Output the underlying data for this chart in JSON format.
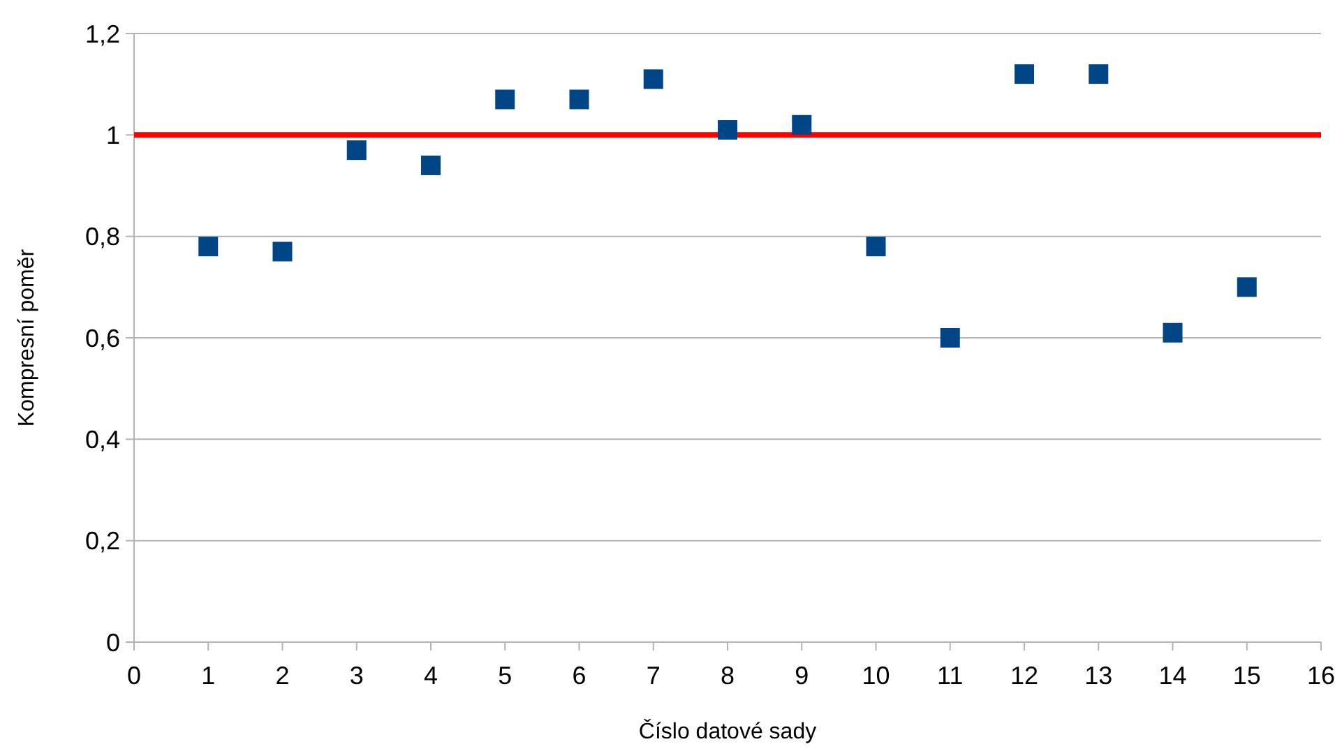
{
  "chart_data": {
    "type": "scatter",
    "xlabel": "Číslo datové sady",
    "ylabel": "Kompresní poměr",
    "x": [
      1,
      2,
      3,
      4,
      5,
      6,
      7,
      8,
      9,
      10,
      11,
      12,
      13,
      14,
      15
    ],
    "series": [
      {
        "color": "#004586",
        "values": [
          0.78,
          0.77,
          0.97,
          0.94,
          1.07,
          1.07,
          1.11,
          1.01,
          1.02,
          0.78,
          0.6,
          1.12,
          1.12,
          0.61,
          0.7
        ]
      }
    ],
    "xlim": [
      0,
      16
    ],
    "xticks": [
      0,
      1,
      2,
      3,
      4,
      5,
      6,
      7,
      8,
      9,
      10,
      11,
      12,
      13,
      14,
      15,
      16
    ],
    "ylim": [
      0,
      1.2
    ],
    "yticks": [
      {
        "value": 0,
        "label": "0"
      },
      {
        "value": 0.2,
        "label": "0,2"
      },
      {
        "value": 0.4,
        "label": "0,4"
      },
      {
        "value": 0.6,
        "label": "0,6"
      },
      {
        "value": 0.8,
        "label": "0,8"
      },
      {
        "value": 1,
        "label": "1"
      },
      {
        "value": 1.2,
        "label": "1,2"
      }
    ],
    "grid": "y",
    "marker": "square",
    "ref_lines": [
      {
        "axis": "y",
        "value": 1,
        "color": "#ff0000"
      }
    ]
  }
}
